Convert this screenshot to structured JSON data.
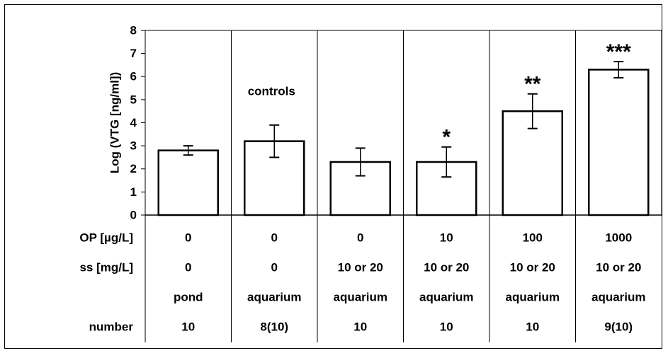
{
  "chart_data": {
    "type": "bar",
    "ylabel": "Log (VTG [ng/ml])",
    "ylim": [
      0,
      8
    ],
    "yticks": [
      "0",
      "1",
      "2",
      "3",
      "4",
      "5",
      "6",
      "7",
      "8"
    ],
    "grid": "vertical lines between groups",
    "values": [
      2.8,
      3.2,
      2.3,
      2.3,
      4.5,
      6.3
    ],
    "error": [
      0.2,
      0.7,
      0.6,
      0.65,
      0.75,
      0.35
    ],
    "significance": [
      "",
      "",
      "",
      "*",
      "**",
      "***"
    ],
    "annotation": "controls",
    "table": {
      "rows": [
        {
          "label": "OP [µg/L]",
          "cells": [
            "0",
            "0",
            "0",
            "10",
            "100",
            "1000"
          ]
        },
        {
          "label": "ss [mg/L]",
          "cells": [
            "0",
            "0",
            "10 or 20",
            "10 or 20",
            "10 or 20",
            "10 or 20"
          ]
        },
        {
          "label": "",
          "cells": [
            "pond",
            "aquarium",
            "aquarium",
            "aquarium",
            "aquarium",
            "aquarium"
          ]
        },
        {
          "label": "number",
          "cells": [
            "10",
            "8(10)",
            "10",
            "10",
            "10",
            "9(10)"
          ]
        }
      ]
    }
  }
}
